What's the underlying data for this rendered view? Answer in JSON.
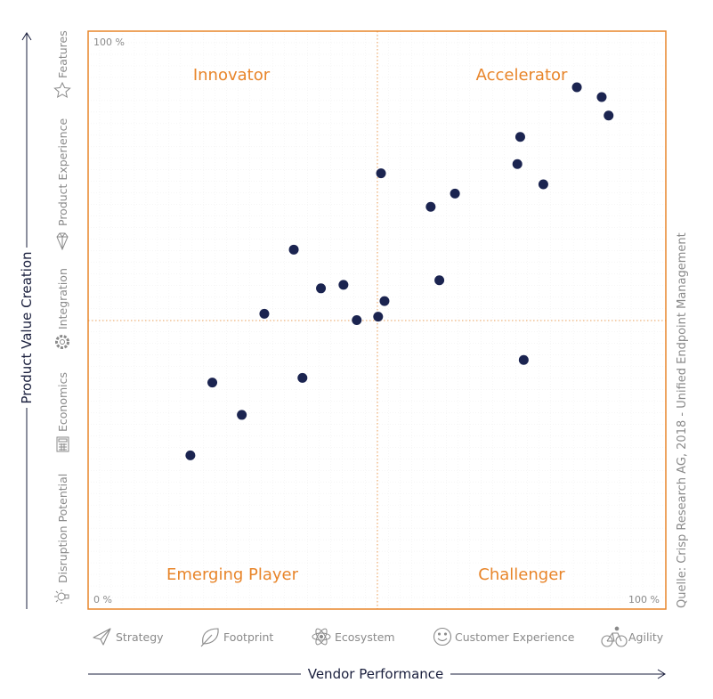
{
  "colors": {
    "accent": "#e8852a",
    "point": "#1b2450",
    "axis": "#1a1f3d",
    "muted": "#8a8a8a",
    "grid": "#eeeeee"
  },
  "chart_data": {
    "type": "scatter",
    "title": "",
    "xlabel": "Vendor Performance",
    "ylabel": "Product Value Creation",
    "xlim": [
      0,
      100
    ],
    "ylim": [
      0,
      100
    ],
    "x_min_label": "0 %",
    "x_max_label": "100 %",
    "y_max_label": "100 %",
    "grid": true,
    "quadrants": {
      "top_left": "Innovator",
      "top_right": "Accelerator",
      "bottom_left": "Emerging Player",
      "bottom_right": "Challenger"
    },
    "points": [
      {
        "x": 40.3,
        "y": 55.5
      },
      {
        "x": 35.6,
        "y": 62.2
      },
      {
        "x": 44.2,
        "y": 56.1
      },
      {
        "x": 51.3,
        "y": 53.3
      },
      {
        "x": 50.2,
        "y": 50.6
      },
      {
        "x": 60.8,
        "y": 56.9
      },
      {
        "x": 50.7,
        "y": 75.4
      },
      {
        "x": 63.5,
        "y": 71.9
      },
      {
        "x": 59.3,
        "y": 69.6
      },
      {
        "x": 74.3,
        "y": 77.0
      },
      {
        "x": 74.8,
        "y": 81.7
      },
      {
        "x": 78.8,
        "y": 73.5
      },
      {
        "x": 84.6,
        "y": 90.3
      },
      {
        "x": 90.1,
        "y": 85.4
      },
      {
        "x": 88.9,
        "y": 88.6
      },
      {
        "x": 75.4,
        "y": 43.1
      },
      {
        "x": 30.5,
        "y": 51.1
      },
      {
        "x": 46.5,
        "y": 50.0
      },
      {
        "x": 21.5,
        "y": 39.2
      },
      {
        "x": 37.1,
        "y": 40.0
      },
      {
        "x": 26.6,
        "y": 33.6
      },
      {
        "x": 17.7,
        "y": 26.6
      }
    ]
  },
  "x_categories": [
    {
      "label": "Strategy",
      "icon": "paper-plane-icon"
    },
    {
      "label": "Footprint",
      "icon": "leaf-icon"
    },
    {
      "label": "Ecosystem",
      "icon": "atom-icon"
    },
    {
      "label": "Customer Experience",
      "icon": "smiley-icon"
    },
    {
      "label": "Agility",
      "icon": "bicycle-icon"
    }
  ],
  "y_categories": [
    {
      "label": "Features",
      "icon": "star-icon"
    },
    {
      "label": "Product Experience",
      "icon": "diamond-icon"
    },
    {
      "label": "Integration",
      "icon": "gear-icon"
    },
    {
      "label": "Economics",
      "icon": "calculator-icon"
    },
    {
      "label": "Disruption Potential",
      "icon": "lightbulb-icon"
    }
  ],
  "source": "Quelle: Crisp Research AG, 2018 - Unified Endpoint Management"
}
